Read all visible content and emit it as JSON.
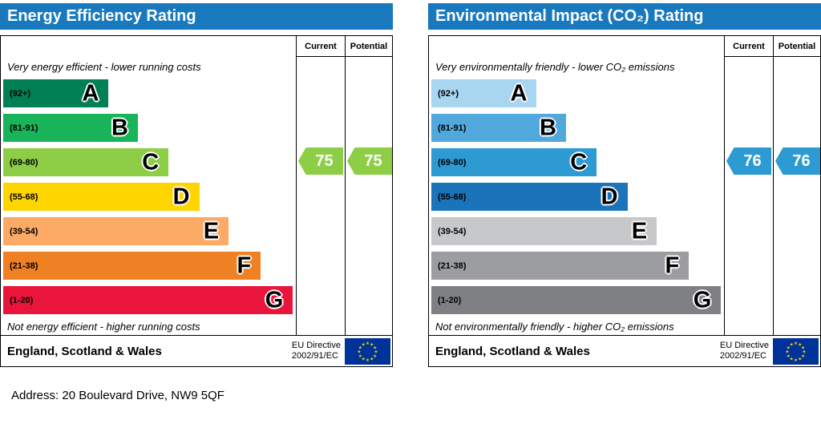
{
  "charts": [
    {
      "title": "Energy Efficiency Rating",
      "header_color": "#1879bf",
      "columns": {
        "current": "Current",
        "potential": "Potential"
      },
      "top_note": "Very energy efficient - lower running costs",
      "bottom_note": "Not energy efficient - higher running costs",
      "bands": [
        {
          "range": "(92+)",
          "letter": "A",
          "color": "#008054",
          "width_pct": 36
        },
        {
          "range": "(81-91)",
          "letter": "B",
          "color": "#19b459",
          "width_pct": 46
        },
        {
          "range": "(69-80)",
          "letter": "C",
          "color": "#8dce46",
          "width_pct": 56.5
        },
        {
          "range": "(55-68)",
          "letter": "D",
          "color": "#ffd500",
          "width_pct": 67
        },
        {
          "range": "(39-54)",
          "letter": "E",
          "color": "#fcaa65",
          "width_pct": 77
        },
        {
          "range": "(21-38)",
          "letter": "F",
          "color": "#ef8023",
          "width_pct": 88
        },
        {
          "range": "(1-20)",
          "letter": "G",
          "color": "#e9153b",
          "width_pct": 99
        }
      ],
      "current": {
        "value": "75",
        "band_index": 2,
        "color": "#8dce46"
      },
      "potential": {
        "value": "75",
        "band_index": 2,
        "color": "#8dce46"
      },
      "footer": {
        "region": "England, Scotland & Wales",
        "directive_line1": "EU Directive",
        "directive_line2": "2002/91/EC"
      }
    },
    {
      "title": "Environmental Impact (CO₂) Rating",
      "header_color": "#1879bf",
      "columns": {
        "current": "Current",
        "potential": "Potential"
      },
      "top_note": "Very environmentally friendly - lower CO₂ emissions",
      "bottom_note": "Not environmentally friendly - higher CO₂ emissions",
      "bands": [
        {
          "range": "(92+)",
          "letter": "A",
          "color": "#a8d6f0",
          "width_pct": 36
        },
        {
          "range": "(81-91)",
          "letter": "B",
          "color": "#51a8dc",
          "width_pct": 46
        },
        {
          "range": "(69-80)",
          "letter": "C",
          "color": "#2d9ad2",
          "width_pct": 56.5
        },
        {
          "range": "(55-68)",
          "letter": "D",
          "color": "#1b74ba",
          "width_pct": 67
        },
        {
          "range": "(39-54)",
          "letter": "E",
          "color": "#c7c8ca",
          "width_pct": 77
        },
        {
          "range": "(21-38)",
          "letter": "F",
          "color": "#9b9da0",
          "width_pct": 88
        },
        {
          "range": "(1-20)",
          "letter": "G",
          "color": "#7e8083",
          "width_pct": 99
        }
      ],
      "current": {
        "value": "76",
        "band_index": 2,
        "color": "#2d9ad2"
      },
      "potential": {
        "value": "76",
        "band_index": 2,
        "color": "#2d9ad2"
      },
      "footer": {
        "region": "England, Scotland & Wales",
        "directive_line1": "EU Directive",
        "directive_line2": "2002/91/EC"
      }
    }
  ],
  "address": "Address: 20 Boulevard Drive, NW9 5QF",
  "eu_flag": {
    "background": "#003399",
    "stars": "#ffcc00"
  },
  "chart_data": [
    {
      "type": "bar",
      "title": "Energy Efficiency Rating",
      "categories": [
        "A (92+)",
        "B (81-91)",
        "C (69-80)",
        "D (55-68)",
        "E (39-54)",
        "F (21-38)",
        "G (1-20)"
      ],
      "values": [
        36,
        46,
        56.5,
        67,
        77,
        88,
        99
      ],
      "band_colors": [
        "#008054",
        "#19b459",
        "#8dce46",
        "#ffd500",
        "#fcaa65",
        "#ef8023",
        "#e9153b"
      ],
      "current_rating": 75,
      "potential_rating": 75,
      "current_band": "C",
      "potential_band": "C",
      "xlabel": "",
      "ylabel": "",
      "legend": [
        "Current",
        "Potential"
      ]
    },
    {
      "type": "bar",
      "title": "Environmental Impact (CO₂) Rating",
      "categories": [
        "A (92+)",
        "B (81-91)",
        "C (69-80)",
        "D (55-68)",
        "E (39-54)",
        "F (21-38)",
        "G (1-20)"
      ],
      "values": [
        36,
        46,
        56.5,
        67,
        77,
        88,
        99
      ],
      "band_colors": [
        "#a8d6f0",
        "#51a8dc",
        "#2d9ad2",
        "#1b74ba",
        "#c7c8ca",
        "#9b9da0",
        "#7e8083"
      ],
      "current_rating": 76,
      "potential_rating": 76,
      "current_band": "C",
      "potential_band": "C",
      "xlabel": "",
      "ylabel": "",
      "legend": [
        "Current",
        "Potential"
      ]
    }
  ]
}
